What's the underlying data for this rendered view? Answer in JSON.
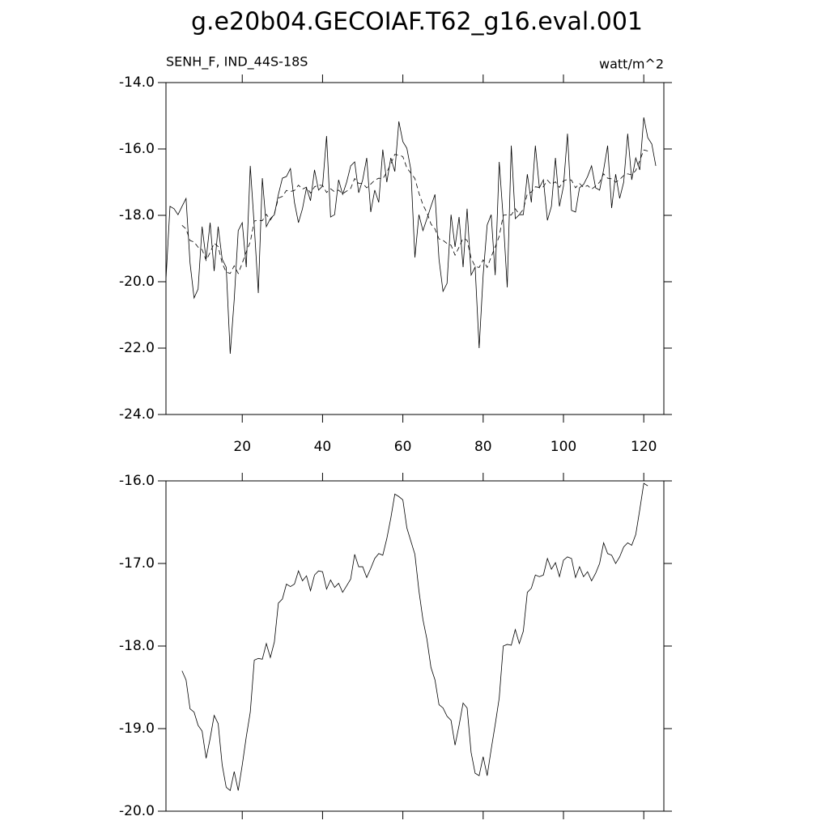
{
  "chart_data": [
    {
      "type": "line",
      "title": "g.e20b04.GECOIAF.T62_g16.eval.001",
      "left_subtitle": "SENH_F, IND_44S-18S",
      "right_subtitle": "watt/m^2",
      "xlim": [
        1,
        125
      ],
      "xticks": [
        20,
        40,
        60,
        80,
        100,
        120
      ],
      "ylim": [
        -24,
        -14
      ],
      "yticks": [
        {
          "value": -24,
          "label": "-24.0"
        },
        {
          "value": -22,
          "label": "-22.0"
        },
        {
          "value": -20,
          "label": "-20.0"
        },
        {
          "value": -18,
          "label": "-18.0"
        },
        {
          "value": -16,
          "label": "-16.0"
        },
        {
          "value": -14,
          "label": "-14.0"
        }
      ],
      "series": [
        {
          "color": "#000000",
          "style": "solid",
          "x": [
            1,
            2,
            3,
            4,
            5,
            6,
            7,
            8,
            9,
            10,
            11,
            12,
            13,
            14,
            15,
            16,
            17,
            18,
            19,
            20,
            21,
            22,
            23,
            24,
            25,
            26,
            27,
            28,
            29,
            30,
            31,
            32,
            33,
            34,
            35,
            36,
            37,
            38,
            39,
            40,
            41,
            42,
            43,
            44,
            45,
            46,
            47,
            48,
            49,
            50,
            51,
            52,
            53,
            54,
            55,
            56,
            57,
            58,
            59,
            60,
            61,
            62,
            63,
            64,
            65,
            66,
            67,
            68,
            69,
            70,
            71,
            72,
            73,
            74,
            75,
            76,
            77,
            78,
            79,
            80,
            81,
            82,
            83,
            84,
            85,
            86,
            87,
            88,
            89,
            90,
            91,
            92,
            93,
            94,
            95,
            96,
            97,
            98,
            99,
            100,
            101,
            102,
            103,
            104,
            105,
            106,
            107,
            108,
            109,
            110,
            111,
            112,
            113,
            114,
            115,
            116,
            117,
            118,
            119,
            120,
            121,
            122,
            123
          ],
          "values": [
            -19.93,
            -17.73,
            -17.8,
            -17.98,
            -17.73,
            -17.49,
            -19.44,
            -20.49,
            -20.22,
            -18.34,
            -19.32,
            -18.22,
            -19.68,
            -18.34,
            -19.32,
            -19.56,
            -22.17,
            -20.54,
            -18.46,
            -18.22,
            -19.56,
            -16.51,
            -18.34,
            -20.34,
            -16.88,
            -18.34,
            -18.1,
            -17.98,
            -17.37,
            -16.88,
            -16.83,
            -16.59,
            -17.61,
            -18.22,
            -17.8,
            -17.17,
            -17.56,
            -16.63,
            -17.24,
            -17.12,
            -15.61,
            -18.05,
            -17.98,
            -16.93,
            -17.37,
            -17.0,
            -16.51,
            -16.39,
            -17.32,
            -16.93,
            -16.27,
            -17.9,
            -17.24,
            -17.61,
            -16.02,
            -17.0,
            -16.27,
            -16.68,
            -15.17,
            -15.78,
            -15.98,
            -16.63,
            -19.27,
            -17.98,
            -18.46,
            -18.1,
            -17.73,
            -17.37,
            -19.32,
            -20.29,
            -20.05,
            -17.98,
            -18.95,
            -18.05,
            -19.56,
            -17.8,
            -19.8,
            -19.56,
            -22.0,
            -19.8,
            -18.29,
            -17.98,
            -19.8,
            -16.39,
            -18.1,
            -20.17,
            -15.9,
            -18.1,
            -17.98,
            -17.98,
            -16.76,
            -17.61,
            -15.9,
            -17.17,
            -16.93,
            -18.15,
            -17.73,
            -16.27,
            -17.73,
            -17.12,
            -15.54,
            -17.85,
            -17.9,
            -17.17,
            -17.07,
            -16.83,
            -16.51,
            -17.17,
            -17.24,
            -16.63,
            -15.9,
            -17.78,
            -16.76,
            -17.49,
            -17.0,
            -15.54,
            -16.93,
            -16.27,
            -16.63,
            -15.05,
            -15.66,
            -15.85,
            -16.51
          ]
        },
        {
          "color": "#000000",
          "style": "dashed",
          "x": [
            5,
            6,
            7,
            8,
            9,
            10,
            11,
            12,
            13,
            14,
            15,
            16,
            17,
            18,
            19,
            20,
            21,
            22,
            23,
            24,
            25,
            26,
            27,
            28,
            29,
            30,
            31,
            32,
            33,
            34,
            35,
            36,
            37,
            38,
            39,
            40,
            41,
            42,
            43,
            44,
            45,
            46,
            47,
            48,
            49,
            50,
            51,
            52,
            53,
            54,
            55,
            56,
            57,
            58,
            59,
            60,
            61,
            62,
            63,
            64,
            65,
            66,
            67,
            68,
            69,
            70,
            71,
            72,
            73,
            74,
            75,
            76,
            77,
            78,
            79,
            80,
            81,
            82,
            83,
            84,
            85,
            86,
            87,
            88,
            89,
            90,
            91,
            92,
            93,
            94,
            95,
            96,
            97,
            98,
            99,
            100,
            101,
            102,
            103,
            104,
            105,
            106,
            107,
            108,
            109,
            110,
            111,
            112,
            113,
            114,
            115,
            116,
            117,
            118,
            119,
            120,
            121
          ],
          "values": [
            -18.3,
            -18.41,
            -18.76,
            -18.8,
            -18.96,
            -19.03,
            -19.36,
            -19.12,
            -18.84,
            -18.94,
            -19.44,
            -19.71,
            -19.75,
            -19.52,
            -19.75,
            -19.44,
            -19.1,
            -18.8,
            -18.17,
            -18.15,
            -18.16,
            -17.97,
            -18.14,
            -17.95,
            -17.48,
            -17.43,
            -17.25,
            -17.28,
            -17.25,
            -17.09,
            -17.21,
            -17.15,
            -17.33,
            -17.14,
            -17.09,
            -17.1,
            -17.31,
            -17.2,
            -17.29,
            -17.24,
            -17.35,
            -17.27,
            -17.19,
            -16.89,
            -17.04,
            -17.04,
            -17.17,
            -17.06,
            -16.94,
            -16.88,
            -16.9,
            -16.7,
            -16.45,
            -16.16,
            -16.19,
            -16.23,
            -16.57,
            -16.73,
            -16.89,
            -17.33,
            -17.68,
            -17.92,
            -18.26,
            -18.41,
            -18.71,
            -18.75,
            -18.85,
            -18.9,
            -19.2,
            -18.96,
            -18.69,
            -18.75,
            -19.29,
            -19.54,
            -19.57,
            -19.34,
            -19.57,
            -19.25,
            -18.95,
            -18.63,
            -18.0,
            -17.98,
            -17.99,
            -17.8,
            -17.97,
            -17.82,
            -17.35,
            -17.3,
            -17.14,
            -17.16,
            -17.14,
            -16.94,
            -17.07,
            -16.99,
            -17.16,
            -16.96,
            -16.92,
            -16.94,
            -17.17,
            -17.04,
            -17.16,
            -17.1,
            -17.21,
            -17.12,
            -17.0,
            -16.75,
            -16.88,
            -16.9,
            -17.0,
            -16.92,
            -16.8,
            -16.75,
            -16.78,
            -16.65,
            -16.35,
            -16.03,
            -16.06
          ]
        }
      ]
    },
    {
      "type": "line",
      "xlim": [
        1,
        125
      ],
      "xticks": [
        20,
        40,
        60,
        80,
        100,
        120
      ],
      "ylim": [
        -20,
        -16
      ],
      "yticks": [
        {
          "value": -20,
          "label": "-20.0"
        },
        {
          "value": -19,
          "label": "-19.0"
        },
        {
          "value": -18,
          "label": "-18.0"
        },
        {
          "value": -17,
          "label": "-17.0"
        },
        {
          "value": -16,
          "label": "-16.0"
        }
      ],
      "series": [
        {
          "color": "#000000",
          "style": "solid",
          "x": [
            5,
            6,
            7,
            8,
            9,
            10,
            11,
            12,
            13,
            14,
            15,
            16,
            17,
            18,
            19,
            20,
            21,
            22,
            23,
            24,
            25,
            26,
            27,
            28,
            29,
            30,
            31,
            32,
            33,
            34,
            35,
            36,
            37,
            38,
            39,
            40,
            41,
            42,
            43,
            44,
            45,
            46,
            47,
            48,
            49,
            50,
            51,
            52,
            53,
            54,
            55,
            56,
            57,
            58,
            59,
            60,
            61,
            62,
            63,
            64,
            65,
            66,
            67,
            68,
            69,
            70,
            71,
            72,
            73,
            74,
            75,
            76,
            77,
            78,
            79,
            80,
            81,
            82,
            83,
            84,
            85,
            86,
            87,
            88,
            89,
            90,
            91,
            92,
            93,
            94,
            95,
            96,
            97,
            98,
            99,
            100,
            101,
            102,
            103,
            104,
            105,
            106,
            107,
            108,
            109,
            110,
            111,
            112,
            113,
            114,
            115,
            116,
            117,
            118,
            119,
            120,
            121
          ],
          "values": [
            -18.3,
            -18.41,
            -18.76,
            -18.8,
            -18.96,
            -19.03,
            -19.36,
            -19.12,
            -18.84,
            -18.94,
            -19.44,
            -19.71,
            -19.75,
            -19.52,
            -19.75,
            -19.44,
            -19.1,
            -18.8,
            -18.17,
            -18.15,
            -18.16,
            -17.97,
            -18.14,
            -17.95,
            -17.48,
            -17.43,
            -17.25,
            -17.28,
            -17.25,
            -17.09,
            -17.21,
            -17.15,
            -17.33,
            -17.14,
            -17.09,
            -17.1,
            -17.31,
            -17.2,
            -17.29,
            -17.24,
            -17.35,
            -17.27,
            -17.19,
            -16.89,
            -17.04,
            -17.04,
            -17.17,
            -17.06,
            -16.94,
            -16.88,
            -16.9,
            -16.7,
            -16.45,
            -16.16,
            -16.19,
            -16.23,
            -16.57,
            -16.73,
            -16.89,
            -17.33,
            -17.68,
            -17.92,
            -18.26,
            -18.41,
            -18.71,
            -18.75,
            -18.85,
            -18.9,
            -19.2,
            -18.96,
            -18.69,
            -18.75,
            -19.29,
            -19.54,
            -19.57,
            -19.34,
            -19.57,
            -19.25,
            -18.95,
            -18.63,
            -18.0,
            -17.98,
            -17.99,
            -17.8,
            -17.97,
            -17.82,
            -17.35,
            -17.3,
            -17.14,
            -17.16,
            -17.14,
            -16.94,
            -17.07,
            -16.99,
            -17.16,
            -16.96,
            -16.92,
            -16.94,
            -17.17,
            -17.04,
            -17.16,
            -17.1,
            -17.21,
            -17.12,
            -17.0,
            -16.75,
            -16.88,
            -16.9,
            -17.0,
            -16.92,
            -16.8,
            -16.75,
            -16.78,
            -16.65,
            -16.35,
            -16.03,
            -16.06
          ]
        }
      ]
    }
  ]
}
